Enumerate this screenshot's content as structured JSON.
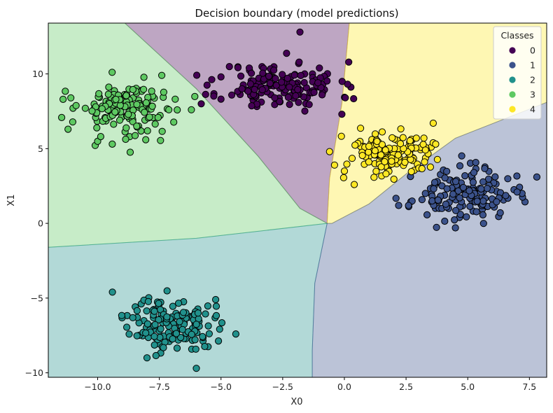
{
  "chart_data": {
    "type": "scatter",
    "title": "Decision boundary (model predictions)",
    "xlabel": "X0",
    "ylabel": "X1",
    "xlim": [
      -12.0,
      8.2
    ],
    "ylim": [
      -10.3,
      13.4
    ],
    "xticks": [
      -10.0,
      -7.5,
      -5.0,
      -2.5,
      0.0,
      2.5,
      5.0,
      7.5
    ],
    "xtick_labels": [
      "−10.0",
      "−7.5",
      "−5.0",
      "−2.5",
      "0.0",
      "2.5",
      "5.0",
      "7.5"
    ],
    "yticks": [
      -10,
      -5,
      0,
      5,
      10
    ],
    "ytick_labels": [
      "−10",
      "−5",
      "0",
      "5",
      "10"
    ],
    "grid": false,
    "legend": {
      "title": "Classes",
      "position": "top-right",
      "entries": [
        "0",
        "1",
        "2",
        "3",
        "4"
      ]
    },
    "class_colors": [
      "#440154",
      "#3b528b",
      "#21918c",
      "#5ec962",
      "#fde725"
    ],
    "region_alpha": 0.35,
    "decision_regions": [
      {
        "class": 0,
        "polygon": [
          [
            -8.9,
            13.4
          ],
          [
            0.2,
            13.4
          ],
          [
            -0.1,
            8.0
          ],
          [
            -0.6,
            3.0
          ],
          [
            -0.7,
            0.0
          ],
          [
            -1.8,
            1.0
          ],
          [
            -3.5,
            4.5
          ],
          [
            -6.0,
            9.0
          ],
          [
            -8.9,
            13.4
          ]
        ]
      },
      {
        "class": 4,
        "polygon": [
          [
            0.2,
            13.4
          ],
          [
            8.2,
            13.4
          ],
          [
            8.2,
            8.1
          ],
          [
            4.5,
            5.7
          ],
          [
            2.5,
            3.3
          ],
          [
            1.0,
            1.3
          ],
          [
            -0.5,
            0.0
          ],
          [
            -0.7,
            0.0
          ],
          [
            -0.6,
            3.0
          ],
          [
            -0.1,
            8.0
          ],
          [
            0.2,
            13.4
          ]
        ]
      },
      {
        "class": 3,
        "polygon": [
          [
            -12.0,
            13.4
          ],
          [
            -8.9,
            13.4
          ],
          [
            -6.0,
            9.0
          ],
          [
            -3.5,
            4.5
          ],
          [
            -1.8,
            1.0
          ],
          [
            -0.7,
            0.0
          ],
          [
            -6.0,
            -1.0
          ],
          [
            -12.0,
            -1.6
          ],
          [
            -12.0,
            13.4
          ]
        ]
      },
      {
        "class": 2,
        "polygon": [
          [
            -12.0,
            -1.6
          ],
          [
            -6.0,
            -1.0
          ],
          [
            -0.7,
            0.0
          ],
          [
            -1.2,
            -4.0
          ],
          [
            -1.3,
            -8.5
          ],
          [
            -1.3,
            -10.3
          ],
          [
            -12.0,
            -10.3
          ],
          [
            -12.0,
            -1.6
          ]
        ]
      },
      {
        "class": 1,
        "polygon": [
          [
            -0.7,
            0.0
          ],
          [
            -0.5,
            0.0
          ],
          [
            1.0,
            1.3
          ],
          [
            2.5,
            3.3
          ],
          [
            4.5,
            5.7
          ],
          [
            8.2,
            8.1
          ],
          [
            8.2,
            -10.3
          ],
          [
            -1.3,
            -10.3
          ],
          [
            -1.3,
            -8.5
          ],
          [
            -1.2,
            -4.0
          ],
          [
            -0.7,
            0.0
          ]
        ]
      }
    ],
    "clusters": [
      {
        "class": 0,
        "center": [
          -2.6,
          9.2
        ],
        "spread": [
          1.2,
          0.8
        ],
        "count": 150,
        "seed": 11,
        "outliers": [
          [
            -1.8,
            12.8
          ],
          [
            -5.0,
            9.8
          ],
          [
            -5.8,
            8.0
          ],
          [
            -0.1,
            7.3
          ],
          [
            -0.9,
            8.6
          ]
        ]
      },
      {
        "class": 1,
        "center": [
          4.8,
          1.9
        ],
        "spread": [
          1.0,
          0.85
        ],
        "count": 150,
        "seed": 23,
        "outliers": [
          [
            7.8,
            3.1
          ],
          [
            7.2,
            2.0
          ],
          [
            2.6,
            1.2
          ],
          [
            2.2,
            1.2
          ],
          [
            4.5,
            -0.3
          ],
          [
            7.0,
            2.1
          ]
        ]
      },
      {
        "class": 2,
        "center": [
          -7.0,
          -6.7
        ],
        "spread": [
          0.85,
          0.9
        ],
        "count": 150,
        "seed": 37,
        "outliers": [
          [
            -9.4,
            -4.6
          ],
          [
            -4.4,
            -7.4
          ],
          [
            -8.0,
            -9.0
          ],
          [
            -6.0,
            -9.7
          ]
        ]
      },
      {
        "class": 3,
        "center": [
          -8.8,
          7.6
        ],
        "spread": [
          1.0,
          1.0
        ],
        "count": 150,
        "seed": 53,
        "outliers": [
          [
            -11.4,
            8.3
          ],
          [
            -11.2,
            6.3
          ],
          [
            -10.5,
            7.7
          ],
          [
            -7.4,
            9.9
          ],
          [
            -6.2,
            7.6
          ]
        ]
      },
      {
        "class": 4,
        "center": [
          2.0,
          4.6
        ],
        "spread": [
          0.95,
          0.75
        ],
        "count": 150,
        "seed": 71,
        "outliers": [
          [
            -0.6,
            4.8
          ],
          [
            -0.4,
            3.9
          ],
          [
            0.4,
            2.6
          ],
          [
            3.6,
            6.7
          ],
          [
            3.7,
            5.3
          ],
          [
            0.0,
            3.5
          ]
        ]
      }
    ]
  }
}
